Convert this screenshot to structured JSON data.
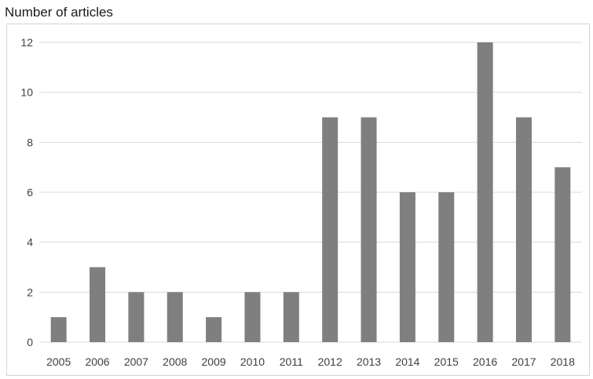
{
  "chart_data": {
    "type": "bar",
    "title": "Number of articles",
    "xlabel": "",
    "ylabel": "",
    "categories": [
      "2005",
      "2006",
      "2007",
      "2008",
      "2009",
      "2010",
      "2011",
      "2012",
      "2013",
      "2014",
      "2015",
      "2016",
      "2017",
      "2018"
    ],
    "values": [
      1,
      3,
      2,
      2,
      1,
      2,
      2,
      9,
      9,
      6,
      6,
      12,
      9,
      7
    ],
    "ylim": [
      0,
      12
    ],
    "yticks": [
      "0",
      "2",
      "4",
      "6",
      "8",
      "10",
      "12"
    ],
    "grid": true,
    "legend": "none",
    "colors": {
      "bar": "#7f7f7f",
      "grid": "#d9d9d9",
      "axis": "#d9d9d9",
      "text": "#404040"
    }
  }
}
